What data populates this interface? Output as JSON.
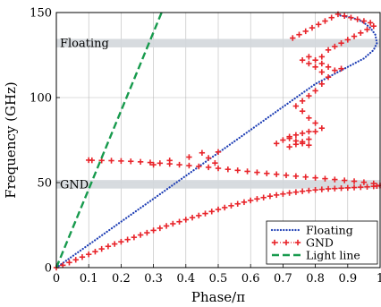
{
  "chart_data": {
    "type": "line",
    "title": "",
    "xlabel": "Phase/π",
    "ylabel": "Frequency (GHz)",
    "xlim": [
      0,
      1
    ],
    "ylim": [
      0,
      150
    ],
    "xticks": [
      0,
      0.1,
      0.2,
      0.3,
      0.4,
      0.5,
      0.6,
      0.7,
      0.8,
      0.9,
      1
    ],
    "xtick_labels": [
      "0",
      "0.1",
      "0.2",
      "0.3",
      "0.4",
      "0.5",
      "0.6",
      "0.7",
      "0.8",
      "0.9",
      "1"
    ],
    "yticks": [
      0,
      50,
      100,
      150
    ],
    "ytick_labels": [
      "0",
      "50",
      "100",
      "150"
    ],
    "grid": true,
    "legend_position": "bottom-right",
    "bands": [
      {
        "label": "Floating",
        "y0": 129.5,
        "y1": 134.5,
        "color": "#d3d7dc"
      },
      {
        "label": "GND",
        "y0": 46.5,
        "y1": 51.5,
        "color": "#d3d7dc"
      }
    ],
    "series": [
      {
        "name": "Floating",
        "style": "dotted",
        "color": "#1f3fb5",
        "x": [
          0,
          0.1,
          0.2,
          0.3,
          0.4,
          0.5,
          0.6,
          0.7,
          0.8,
          0.9,
          0.95,
          0.98,
          0.99,
          0.985,
          0.97,
          0.95,
          0.93,
          0.9,
          0.87
        ],
        "y": [
          0,
          13.5,
          27,
          40.5,
          54,
          67.5,
          81,
          94.5,
          108,
          118,
          123,
          128,
          132,
          137,
          141,
          144,
          146,
          147.5,
          148.5
        ]
      },
      {
        "name": "GND",
        "style": "markers",
        "color": "#e8252b",
        "x": [
          0,
          0.02,
          0.04,
          0.06,
          0.08,
          0.1,
          0.12,
          0.14,
          0.16,
          0.18,
          0.2,
          0.22,
          0.24,
          0.26,
          0.28,
          0.3,
          0.32,
          0.34,
          0.36,
          0.38,
          0.4,
          0.42,
          0.44,
          0.46,
          0.48,
          0.5,
          0.52,
          0.54,
          0.56,
          0.58,
          0.6,
          0.62,
          0.64,
          0.66,
          0.68,
          0.7,
          0.72,
          0.74,
          0.76,
          0.78,
          0.8,
          0.82,
          0.84,
          0.86,
          0.88,
          0.9,
          0.92,
          0.94,
          0.96,
          0.98,
          0.99,
          1.0,
          0.98,
          0.95,
          0.92,
          0.89,
          0.86,
          0.83,
          0.8,
          0.77,
          0.74,
          0.71,
          0.68,
          0.65,
          0.62,
          0.59,
          0.56,
          0.53,
          0.5,
          0.47,
          0.44,
          0.41,
          0.38,
          0.35,
          0.32,
          0.29,
          0.26,
          0.23,
          0.2,
          0.17,
          0.14,
          0.11,
          0.1,
          0.3,
          0.35,
          0.41,
          0.45,
          0.47,
          0.5,
          0.49,
          0.68,
          0.7,
          0.72,
          0.74,
          0.76,
          0.78,
          0.72,
          0.74,
          0.76,
          0.78,
          0.72,
          0.74,
          0.76,
          0.78,
          0.8,
          0.82,
          0.8,
          0.78,
          0.76,
          0.74,
          0.76,
          0.78,
          0.8,
          0.82,
          0.84,
          0.82,
          0.8,
          0.78,
          0.76,
          0.82,
          0.84,
          0.86,
          0.88,
          0.9,
          0.92,
          0.94,
          0.96,
          0.98,
          0.97,
          0.95,
          0.93,
          0.91,
          0.89,
          0.87,
          0.85,
          0.83,
          0.81,
          0.79,
          0.77,
          0.75,
          0.73,
          0.88,
          0.86,
          0.84,
          0.82,
          0.8,
          0.78
        ],
        "y": [
          0,
          1.4,
          3,
          4.6,
          6.2,
          7.8,
          9.4,
          11,
          12.5,
          13.9,
          15.2,
          16.5,
          17.8,
          19.2,
          20.5,
          21.9,
          23.2,
          24.5,
          25.8,
          27,
          28.2,
          29.4,
          30.6,
          31.8,
          33,
          34.2,
          35.3,
          36.4,
          37.5,
          38.5,
          39.5,
          40.4,
          41.2,
          42,
          42.7,
          43.3,
          43.9,
          44.4,
          44.9,
          45.3,
          45.7,
          46,
          46.3,
          46.5,
          46.7,
          46.9,
          47.1,
          47.3,
          47.5,
          47.8,
          48,
          48.3,
          49.5,
          50.2,
          50.8,
          51.3,
          51.8,
          52.3,
          52.8,
          53.3,
          53.8,
          54.3,
          54.9,
          55.4,
          56,
          56.6,
          57.2,
          57.8,
          58.4,
          59,
          59.5,
          60,
          60.5,
          61,
          61.4,
          61.8,
          62.2,
          62.5,
          62.7,
          62.9,
          63,
          63.1,
          63.2,
          60.5,
          63,
          65,
          67.5,
          64.5,
          68,
          61.5,
          73,
          75,
          77,
          78,
          79,
          80,
          76,
          74.5,
          73,
          72,
          71,
          72.5,
          74,
          75.5,
          80,
          82,
          85,
          88,
          92,
          95,
          98,
          101,
          104,
          108,
          112,
          115,
          118,
          120,
          122,
          124,
          128,
          130,
          132,
          134,
          136,
          138,
          140,
          142,
          144,
          145,
          146,
          147,
          148,
          149,
          147,
          145,
          143,
          141,
          139,
          137,
          135,
          117,
          116,
          118,
          120,
          122,
          124
        ]
      },
      {
        "name": "Light line",
        "style": "dashed",
        "color": "#179a4d",
        "x": [
          0,
          0.325
        ],
        "y": [
          0,
          150
        ]
      }
    ]
  }
}
